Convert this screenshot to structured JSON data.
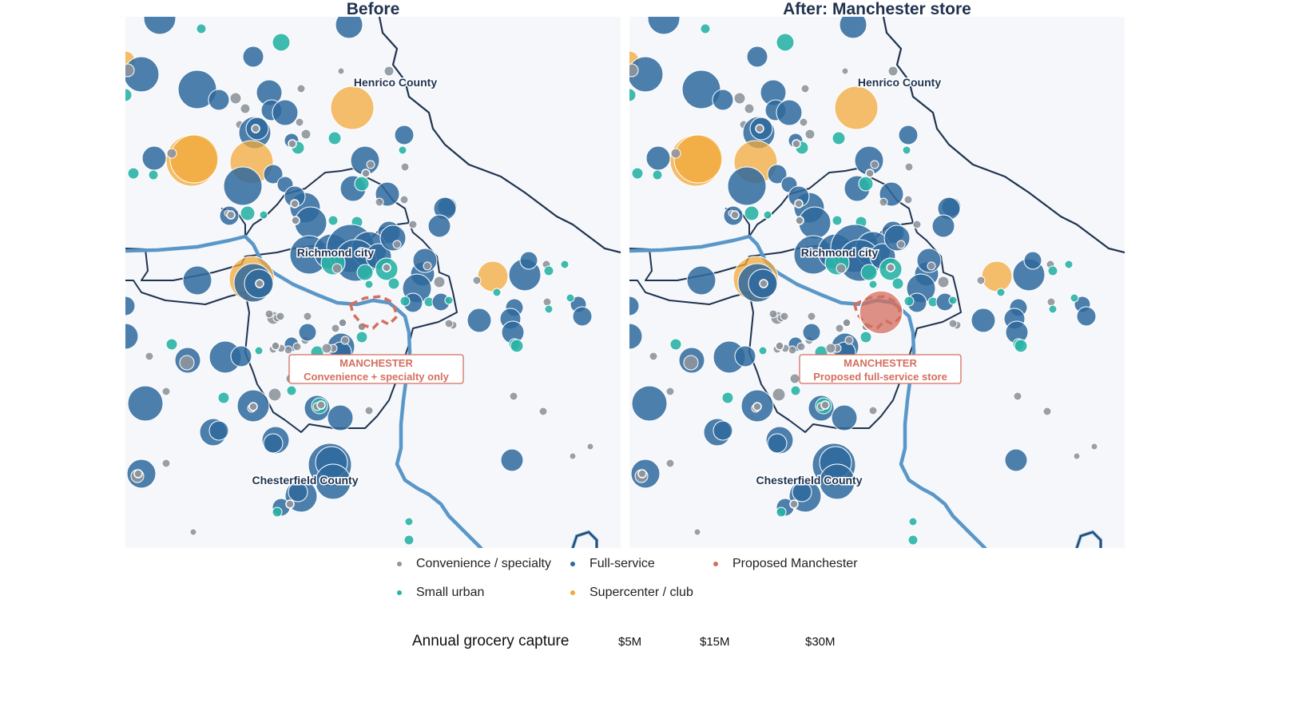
{
  "panels": [
    {
      "title": "Before",
      "annotation": {
        "line1": "MANCHESTER",
        "line2": "Convenience + specialty only"
      },
      "manchester": "outline"
    },
    {
      "title": "After: Manchester store",
      "annotation": {
        "line1": "MANCHESTER",
        "line2": "Proposed full-service store"
      },
      "manchester": "filled"
    }
  ],
  "labels": {
    "henrico": "Henrico County",
    "richmond": "Richmond city",
    "chesterfield": "Chesterfield County"
  },
  "legend": {
    "items": [
      {
        "label": "Convenience / specialty",
        "color": "#8f959c"
      },
      {
        "label": "Full-service",
        "color": "#2f6a9e"
      },
      {
        "label": "Proposed Manchester",
        "color": "#d46f5f"
      },
      {
        "label": "Small urban",
        "color": "#2ab3a6"
      },
      {
        "label": "Supercenter / club",
        "color": "#f2a93b"
      }
    ],
    "size_title": "Annual grocery capture",
    "size_labels": [
      "$5M",
      "$15M",
      "$30M"
    ]
  },
  "colors": {
    "convenience": "#8f959c",
    "full_service": "#2f6a9e",
    "small_urban": "#2ab3a6",
    "supercenter": "#f2a93b",
    "proposed": "#d46f5f",
    "river": "#5a97c9",
    "boundary": "#1f3350",
    "map_bg": "#f5f7fa"
  }
}
